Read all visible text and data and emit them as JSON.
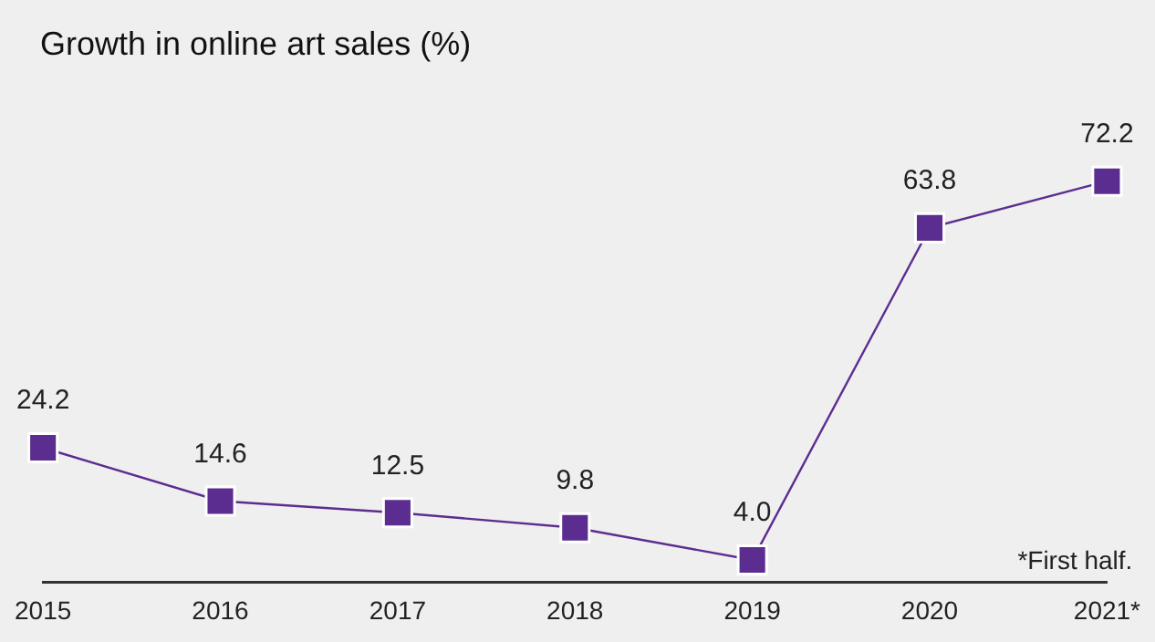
{
  "chart_data": {
    "type": "line",
    "title": "Growth in online art sales (%)",
    "categories": [
      "2015",
      "2016",
      "2017",
      "2018",
      "2019",
      "2020",
      "2021*"
    ],
    "series": [
      {
        "color": "#5b2d90",
        "values": [
          24.2,
          14.6,
          12.5,
          9.8,
          4.0,
          63.8,
          72.2
        ],
        "value_labels": [
          "24.2",
          "14.6",
          "12.5",
          "9.8",
          "4.0",
          "63.8",
          "72.2"
        ]
      }
    ],
    "marker": "square",
    "grid": false,
    "legend": false,
    "annotations": [
      "*First half."
    ]
  }
}
